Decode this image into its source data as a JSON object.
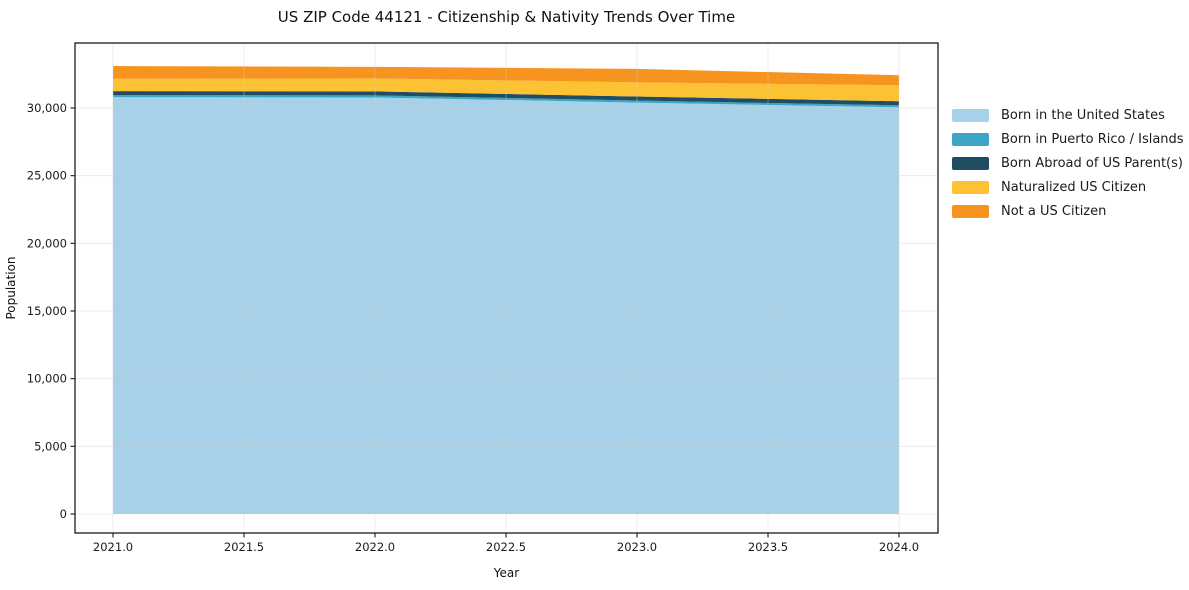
{
  "chart_data": {
    "type": "area",
    "stacked": true,
    "title": "US ZIP Code 44121 - Citizenship & Nativity Trends Over Time",
    "xlabel": "Year",
    "ylabel": "Population",
    "x": [
      2021,
      2022,
      2023,
      2024
    ],
    "series": [
      {
        "name": "Born in the United States",
        "values": [
          30800,
          30780,
          30400,
          30050
        ]
      },
      {
        "name": "Born in Puerto Rico / Islands",
        "values": [
          150,
          150,
          150,
          150
        ]
      },
      {
        "name": "Born Abroad of US Parent(s)",
        "values": [
          300,
          300,
          300,
          300
        ]
      },
      {
        "name": "Naturalized US Citizen",
        "values": [
          900,
          960,
          1040,
          1180
        ]
      },
      {
        "name": "Not a US Citizen",
        "values": [
          950,
          850,
          1000,
          740
        ]
      }
    ],
    "totals": [
      33100,
      33040,
      32890,
      32420
    ],
    "colors": [
      "#a7d1e8",
      "#3ba6c6",
      "#1f4e63",
      "#fcc233",
      "#f7941f"
    ],
    "x_ticks": [
      2021.0,
      2021.5,
      2022.0,
      2022.5,
      2023.0,
      2023.5,
      2024.0
    ],
    "x_tick_labels": [
      "2021.0",
      "2021.5",
      "2022.0",
      "2022.5",
      "2023.0",
      "2023.5",
      "2024.0"
    ],
    "y_ticks": [
      0,
      5000,
      10000,
      15000,
      20000,
      25000,
      30000
    ],
    "y_tick_labels": [
      "0",
      "5,000",
      "10,000",
      "15,000",
      "20,000",
      "25,000",
      "30,000"
    ],
    "xlim": [
      2020.85,
      2024.15
    ],
    "ylim": [
      -1400,
      34800
    ],
    "grid": true,
    "legend_position": "right",
    "grid_color": "#cccccc",
    "spine_color": "#1b1b1b",
    "tick_label_color": "#1a1a1a"
  }
}
